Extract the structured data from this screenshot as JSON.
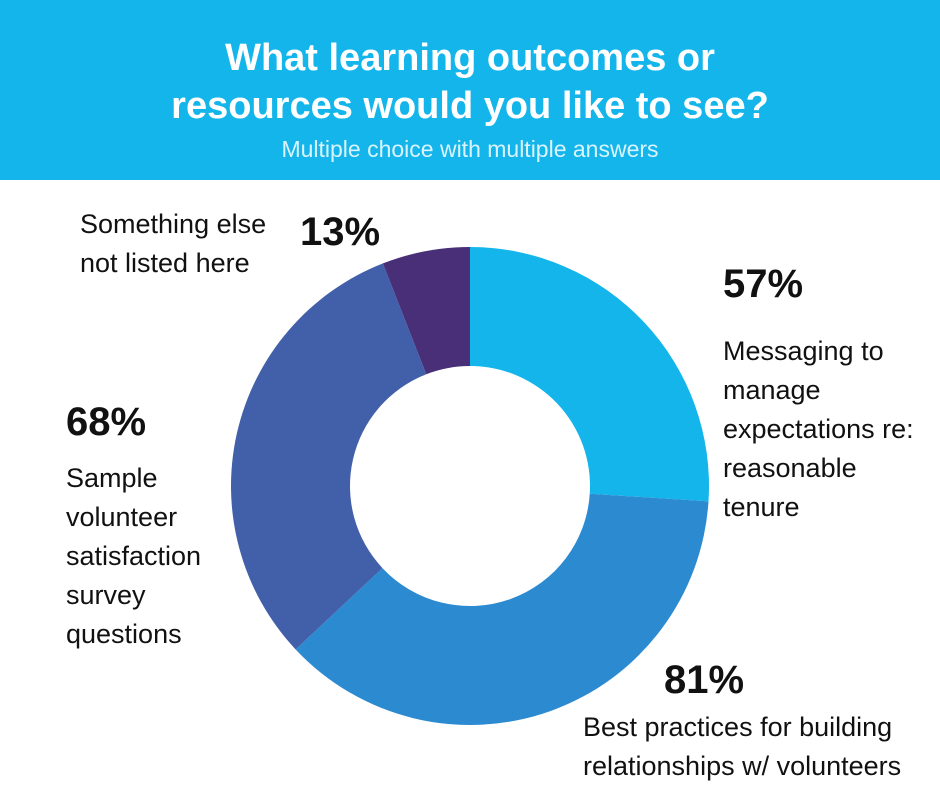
{
  "header": {
    "title": "What learning outcomes or\nresources would you like to see?",
    "subtitle": "Multiple choice with multiple answers",
    "background_color": "#14b5ea"
  },
  "chart_data": {
    "type": "pie",
    "variant": "donut",
    "title": "What learning outcomes or resources would you like to see?",
    "subtitle": "Multiple choice with multiple answers",
    "slices": [
      {
        "label": "Messaging to manage expectations re: reasonable tenure",
        "percent_label": "57%",
        "value": 57,
        "color": "#14b5ea"
      },
      {
        "label": "Best practices for building relationships w/ volunteers",
        "percent_label": "81%",
        "value": 81,
        "color": "#2c8ad1"
      },
      {
        "label": "Sample volunteer satisfaction survey questions",
        "percent_label": "68%",
        "value": 68,
        "color": "#4260aa"
      },
      {
        "label": "Something else not listed here",
        "percent_label": "13%",
        "value": 13,
        "color": "#482f78"
      }
    ]
  },
  "annotations": [
    {
      "pct": "57%",
      "label": "Messaging to\nmanage\nexpectations re:\nreasonable\ntenure"
    },
    {
      "pct": "81%",
      "label": "Best practices for building\nrelationships w/ volunteers"
    },
    {
      "pct": "68%",
      "label": "Sample\nvolunteer\nsatisfaction\nsurvey\nquestions"
    },
    {
      "pct": "13%",
      "label": "Something else\nnot listed here"
    }
  ]
}
